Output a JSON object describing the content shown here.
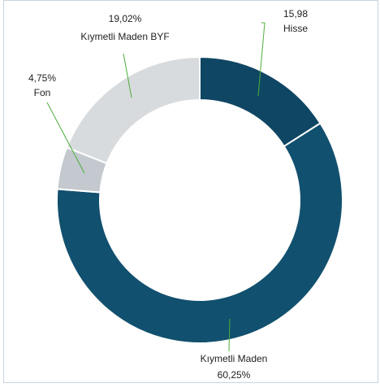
{
  "chart_data": {
    "type": "donut",
    "categories": [
      "Hisse",
      "Kıymetli Maden",
      "Fon",
      "Kıymetli Maden BYF"
    ],
    "values": [
      15.98,
      60.25,
      4.75,
      19.02
    ],
    "value_labels": [
      "15,98",
      "60,25%",
      "4,75%",
      "19,02%"
    ],
    "colors": [
      "#0f4663",
      "#11506e",
      "#c3c9cf",
      "#d8dbde"
    ]
  }
}
